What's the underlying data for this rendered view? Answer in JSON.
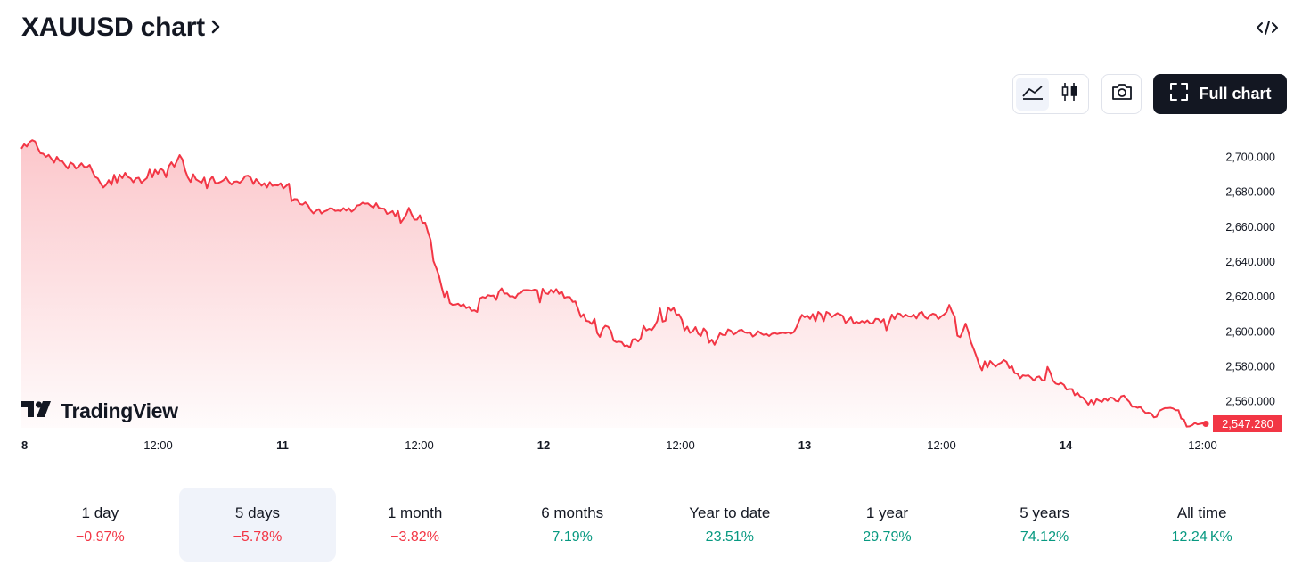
{
  "header": {
    "title": "XAUUSD chart",
    "chevron_icon": "chevron-right-icon",
    "embed_icon": "code-embed-icon"
  },
  "toolbar": {
    "line_icon": "area-chart-icon",
    "candle_icon": "candlestick-icon",
    "camera_icon": "camera-icon",
    "full_chart_label": "Full chart",
    "full_chart_icon": "fullscreen-icon"
  },
  "logo": {
    "text": "TradingView"
  },
  "colors": {
    "line": "#f23645",
    "positive": "#089981",
    "negative": "#f23645",
    "dark": "#131722",
    "active_bg": "#f0f3fa"
  },
  "chart_data": {
    "type": "area",
    "symbol": "XAUUSD",
    "x_ticks": [
      "8",
      "12:00",
      "11",
      "12:00",
      "12",
      "12:00",
      "13",
      "12:00",
      "14",
      "12:00"
    ],
    "y_ticks": [
      "2,700.000",
      "2,680.000",
      "2,660.000",
      "2,640.000",
      "2,620.000",
      "2,600.000",
      "2,580.000",
      "2,560.000"
    ],
    "ylim": [
      2545,
      2710
    ],
    "last_price_label": "2,547.280",
    "last_price": 2547.28,
    "grid": false,
    "values": [
      2705.0,
      2707.5,
      2706.2,
      2708.8,
      2709.9,
      2709.2,
      2705.3,
      2702.4,
      2702.1,
      2700.3,
      2701.4,
      2699.2,
      2697.0,
      2700.3,
      2698.0,
      2697.8,
      2695.6,
      2693.6,
      2697.0,
      2696.1,
      2693.6,
      2694.8,
      2696.6,
      2694.6,
      2694.4,
      2695.7,
      2692.1,
      2688.8,
      2688.0,
      2685.1,
      2682.7,
      2684.2,
      2686.9,
      2684.2,
      2690.0,
      2685.6,
      2690.1,
      2688.1,
      2691.1,
      2688.8,
      2688.0,
      2685.7,
      2688.0,
      2688.3,
      2685.4,
      2686.8,
      2688.2,
      2693.0,
      2688.6,
      2692.9,
      2690.6,
      2693.6,
      2692.5,
      2688.6,
      2694.9,
      2697.2,
      2694.7,
      2697.9,
      2701.3,
      2698.8,
      2692.7,
      2688.5,
      2685.9,
      2690.3,
      2687.3,
      2686.4,
      2685.4,
      2688.4,
      2682.3,
      2686.9,
      2689.0,
      2685.4,
      2685.3,
      2685.9,
      2686.8,
      2688.5,
      2686.1,
      2684.4,
      2686.0,
      2686.2,
      2685.4,
      2686.9,
      2689.2,
      2689.5,
      2688.4,
      2684.7,
      2687.5,
      2685.7,
      2683.8,
      2685.1,
      2682.7,
      2685.8,
      2683.7,
      2684.1,
      2683.9,
      2685.1,
      2682.2,
      2683.6,
      2684.9,
      2674.9,
      2676.1,
      2676.0,
      2673.3,
      2672.9,
      2674.2,
      2672.6,
      2669.7,
      2667.9,
      2669.4,
      2670.3,
      2667.8,
      2669.0,
      2669.6,
      2670.8,
      2670.6,
      2669.3,
      2669.6,
      2669.2,
      2670.9,
      2669.5,
      2670.8,
      2668.9,
      2670.1,
      2672.4,
      2672.7,
      2674.0,
      2673.4,
      2673.6,
      2672.2,
      2671.2,
      2673.7,
      2671.0,
      2670.7,
      2670.5,
      2667.6,
      2668.2,
      2669.2,
      2666.2,
      2669.2,
      2662.5,
      2664.7,
      2667.2,
      2671.0,
      2667.3,
      2664.3,
      2664.3,
      2666.8,
      2662.5,
      2662.5,
      2657.1,
      2652.5,
      2640.6,
      2636.6,
      2632.3,
      2625.6,
      2620.0,
      2623.3,
      2616.5,
      2615.5,
      2615.6,
      2616.1,
      2614.9,
      2615.8,
      2613.6,
      2614.3,
      2612.0,
      2612.4,
      2611.4,
      2619.1,
      2620.0,
      2619.5,
      2621.0,
      2620.6,
      2620.8,
      2618.3,
      2623.1,
      2624.9,
      2621.9,
      2622.0,
      2620.3,
      2620.4,
      2619.5,
      2621.8,
      2622.3,
      2623.9,
      2624.0,
      2623.9,
      2623.6,
      2624.2,
      2623.9,
      2616.9,
      2624.7,
      2622.2,
      2621.7,
      2624.1,
      2622.4,
      2624.5,
      2621.8,
      2623.1,
      2619.5,
      2620.0,
      2619.9,
      2617.2,
      2617.4,
      2613.0,
      2608.5,
      2610.1,
      2606.3,
      2606.0,
      2604.5,
      2607.5,
      2599.3,
      2597.1,
      2601.7,
      2603.5,
      2602.9,
      2600.6,
      2595.0,
      2594.1,
      2594.4,
      2594.1,
      2591.9,
      2592.2,
      2591.1,
      2595.7,
      2596.0,
      2594.5,
      2596.4,
      2603.4,
      2600.8,
      2601.7,
      2601.1,
      2603.2,
      2606.2,
      2613.4,
      2605.9,
      2606.4,
      2614.0,
      2612.2,
      2613.7,
      2609.8,
      2610.0,
      2606.9,
      2600.8,
      2603.0,
      2599.4,
      2600.2,
      2602.7,
      2598.9,
      2597.7,
      2601.9,
      2600.2,
      2593.8,
      2595.5,
      2592.6,
      2596.0,
      2599.2,
      2598.3,
      2598.2,
      2601.4,
      2600.6,
      2598.5,
      2599.4,
      2600.9,
      2601.2,
      2599.7,
      2599.4,
      2599.7,
      2597.3,
      2598.4,
      2600.3,
      2599.1,
      2598.3,
      2598.8,
      2597.6,
      2598.9,
      2599.3,
      2598.8,
      2599.2,
      2599.5,
      2599.2,
      2599.7,
      2599.0,
      2599.8,
      2602.6,
      2606.4,
      2609.7,
      2608.4,
      2609.3,
      2607.4,
      2610.2,
      2606.1,
      2611.4,
      2610.1,
      2606.1,
      2611.4,
      2610.6,
      2608.5,
      2609.6,
      2610.7,
      2610.0,
      2609.1,
      2605.1,
      2606.6,
      2608.3,
      2604.7,
      2605.8,
      2605.0,
      2606.2,
      2605.3,
      2606.5,
      2604.9,
      2604.8,
      2607.4,
      2607.3,
      2605.6,
      2607.2,
      2600.9,
      2605.6,
      2609.9,
      2607.3,
      2610.6,
      2610.3,
      2608.5,
      2609.9,
      2608.9,
      2608.7,
      2609.8,
      2607.7,
      2610.7,
      2611.4,
      2608.6,
      2607.5,
      2609.5,
      2610.4,
      2609.9,
      2607.3,
      2608.8,
      2609.8,
      2611.3,
      2615.4,
      2611.6,
      2608.7,
      2597.8,
      2597.0,
      2600.5,
      2604.7,
      2600.1,
      2594.0,
      2590.0,
      2585.8,
      2581.1,
      2578.0,
      2583.1,
      2579.6,
      2583.3,
      2581.7,
      2580.1,
      2581.6,
      2582.3,
      2583.9,
      2582.8,
      2579.3,
      2580.2,
      2576.3,
      2576.0,
      2573.4,
      2575.1,
      2574.8,
      2575.1,
      2573.8,
      2572.0,
      2574.0,
      2574.4,
      2572.3,
      2572.1,
      2579.9,
      2576.7,
      2572.1,
      2570.4,
      2569.9,
      2570.7,
      2569.6,
      2566.9,
      2567.2,
      2567.2,
      2563.7,
      2565.0,
      2563.0,
      2562.3,
      2560.4,
      2558.3,
      2560.9,
      2558.5,
      2561.5,
      2560.6,
      2559.9,
      2561.9,
      2560.6,
      2562.4,
      2562.1,
      2560.5,
      2560.1,
      2563.1,
      2563.5,
      2561.5,
      2559.9,
      2557.1,
      2557.2,
      2556.5,
      2557.0,
      2555.0,
      2553.5,
      2553.7,
      2553.2,
      2551.0,
      2551.4,
      2554.7,
      2555.5,
      2556.3,
      2556.3,
      2556.5,
      2556.1,
      2555.1,
      2555.1,
      2550.3,
      2549.7,
      2545.7,
      2545.8,
      2546.5,
      2547.8,
      2547.0,
      2547.3,
      2547.6,
      2547.3
    ],
    "x_fractions_span": [
      0,
      0.915
    ]
  },
  "periods": [
    {
      "label": "1 day",
      "change": "−0.97%",
      "direction": "down",
      "active": false
    },
    {
      "label": "5 days",
      "change": "−5.78%",
      "direction": "down",
      "active": true
    },
    {
      "label": "1 month",
      "change": "−3.82%",
      "direction": "down",
      "active": false
    },
    {
      "label": "6 months",
      "change": "7.19%",
      "direction": "up",
      "active": false
    },
    {
      "label": "Year to date",
      "change": "23.51%",
      "direction": "up",
      "active": false
    },
    {
      "label": "1 year",
      "change": "29.79%",
      "direction": "up",
      "active": false
    },
    {
      "label": "5 years",
      "change": "74.12%",
      "direction": "up",
      "active": false
    },
    {
      "label": "All time",
      "change": "12.24 K%",
      "direction": "up",
      "active": false
    }
  ]
}
